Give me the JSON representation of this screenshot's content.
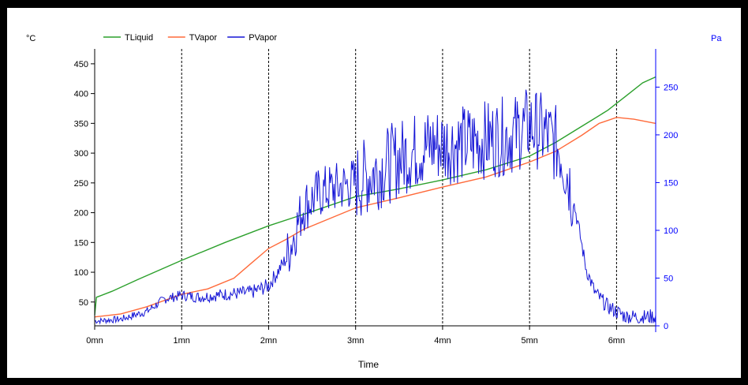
{
  "chart_data": {
    "type": "line",
    "xlabel": "Time",
    "left_unit": "°C",
    "right_unit": "Pa",
    "x_ticks": [
      "0mn",
      "1mn",
      "2mn",
      "3mn",
      "4mn",
      "5mn",
      "6mn"
    ],
    "x_range": [
      0,
      6.45
    ],
    "y_left_range": [
      10,
      475
    ],
    "y_left_ticks": [
      50,
      100,
      150,
      200,
      250,
      300,
      350,
      400,
      450
    ],
    "y_right_range": [
      0,
      290
    ],
    "y_right_ticks": [
      0,
      50,
      100,
      150,
      200,
      250
    ],
    "grid": "vertical dashed lines at each minute",
    "legend_position": "top-left",
    "series": [
      {
        "name": "TLiquid",
        "axis": "left",
        "color": "#2ca02c",
        "x": [
          0,
          0.02,
          0.2,
          0.5,
          1.0,
          1.5,
          2.0,
          2.5,
          3.0,
          3.5,
          4.0,
          4.5,
          5.0,
          5.3,
          5.6,
          5.9,
          6.1,
          6.3,
          6.45
        ],
        "y": [
          28,
          58,
          68,
          88,
          120,
          150,
          178,
          202,
          227,
          240,
          255,
          272,
          295,
          318,
          345,
          372,
          395,
          418,
          428
        ]
      },
      {
        "name": "TVapor",
        "axis": "left",
        "color": "#ff6a3a",
        "x": [
          0,
          0.3,
          0.6,
          1.0,
          1.3,
          1.6,
          1.8,
          2.0,
          2.2,
          2.4,
          2.7,
          3.0,
          3.5,
          4.0,
          4.5,
          5.0,
          5.3,
          5.6,
          5.8,
          6.0,
          6.2,
          6.45
        ],
        "y": [
          25,
          30,
          42,
          63,
          72,
          90,
          115,
          140,
          155,
          172,
          190,
          208,
          225,
          243,
          260,
          285,
          303,
          330,
          350,
          360,
          357,
          350
        ]
      },
      {
        "name": "PVapor",
        "axis": "right",
        "color": "#1515d6",
        "noisy": true,
        "x": [
          0,
          0.3,
          0.6,
          0.8,
          1.0,
          1.2,
          1.5,
          1.8,
          2.0,
          2.2,
          2.4,
          2.6,
          2.8,
          3.0,
          3.3,
          3.6,
          3.9,
          4.2,
          4.5,
          4.8,
          5.0,
          5.2,
          5.35,
          5.45,
          5.55,
          5.65,
          5.75,
          5.9,
          6.0,
          6.1,
          6.3,
          6.45
        ],
        "y": [
          5,
          7,
          15,
          28,
          32,
          30,
          33,
          35,
          42,
          70,
          125,
          140,
          145,
          150,
          165,
          180,
          190,
          190,
          195,
          200,
          210,
          200,
          185,
          155,
          110,
          60,
          35,
          20,
          15,
          10,
          9,
          10
        ]
      }
    ]
  }
}
